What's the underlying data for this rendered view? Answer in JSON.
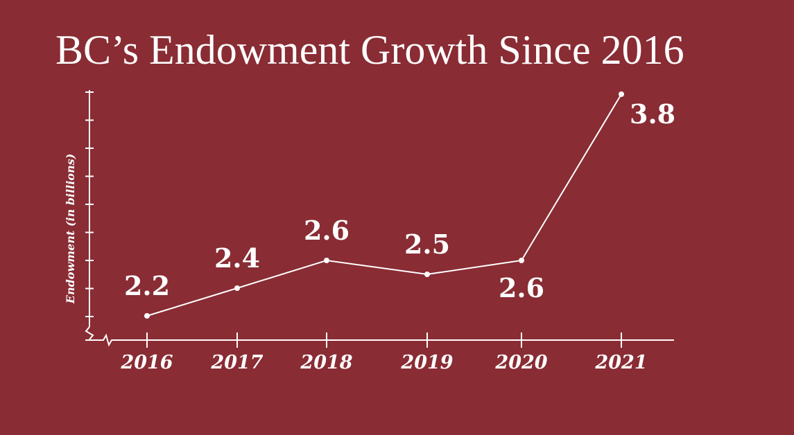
{
  "chart_data": {
    "type": "line",
    "title": "BC’s Endowment Growth Since 2016",
    "xlabel": "",
    "ylabel": "Endowment (in billions)",
    "categories": [
      "2016",
      "2017",
      "2018",
      "2019",
      "2020",
      "2021"
    ],
    "series": [
      {
        "name": "Endowment",
        "values": [
          2.2,
          2.4,
          2.6,
          2.5,
          2.6,
          3.8
        ],
        "labels": [
          "2.2",
          "2.4",
          "2.6",
          "2.5",
          "2.6",
          "3.8"
        ],
        "label_placement": [
          "above",
          "above",
          "above",
          "above",
          "below",
          "right"
        ]
      }
    ],
    "ylim": [
      2.0,
      3.9
    ],
    "grid": false,
    "legend": "none",
    "colors": {
      "background": "#892c34",
      "foreground": "#ffffff"
    }
  }
}
